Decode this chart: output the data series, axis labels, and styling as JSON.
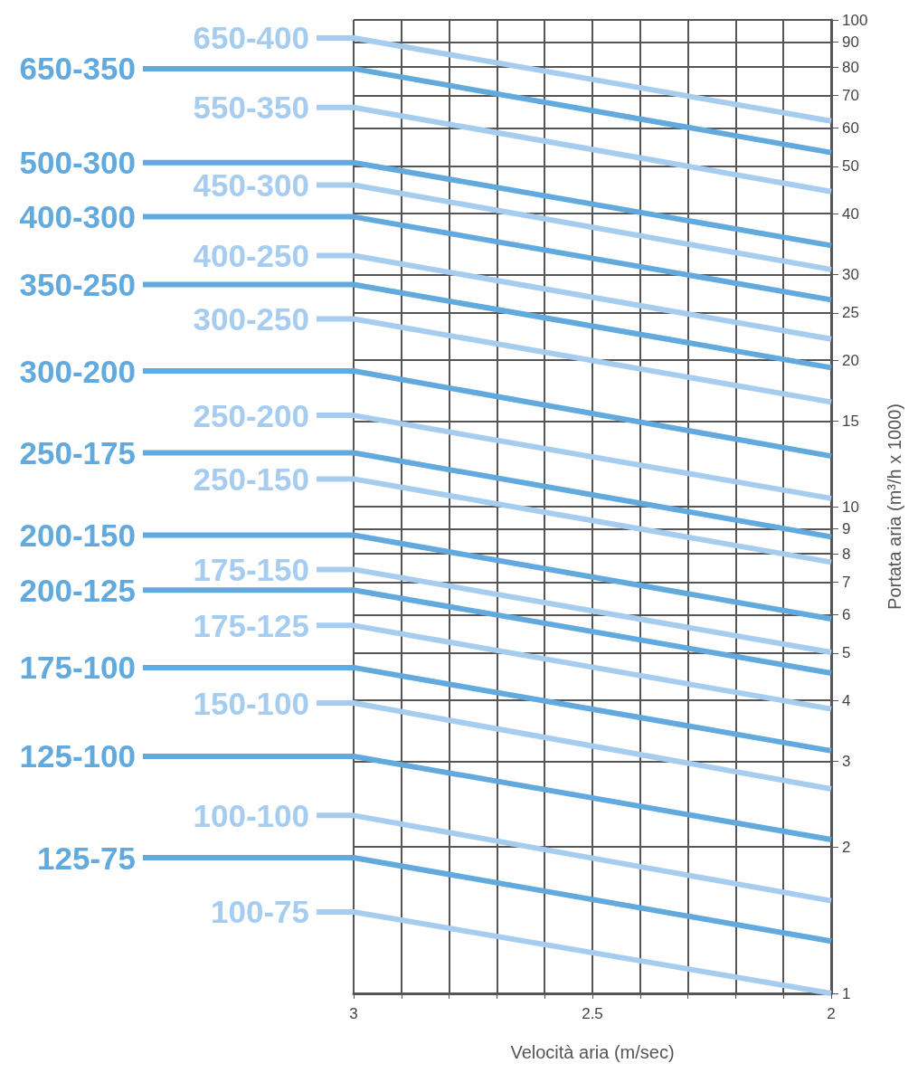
{
  "chart_data": {
    "type": "line",
    "xlabel": "Velocità aria (m/sec)",
    "ylabel": "Portata aria (m³/h x 1000)",
    "log": "y",
    "grid": true,
    "legend": "left",
    "marker": "none",
    "line_style": "solid",
    "x": [
      3,
      2
    ],
    "xlim": [
      3,
      2
    ],
    "xticks": [
      3,
      {
        "value": 2.9,
        "label": null
      },
      {
        "value": 2.8,
        "label": null
      },
      {
        "value": 2.7,
        "label": null
      },
      {
        "value": 2.6,
        "label": null
      },
      2.5,
      {
        "value": 2.4,
        "label": null
      },
      {
        "value": 2.3,
        "label": null
      },
      {
        "value": 2.2,
        "label": null
      },
      {
        "value": 2.1,
        "label": null
      },
      2
    ],
    "ylim": [
      1,
      100
    ],
    "yticks": [
      1,
      2,
      3,
      4,
      5,
      6,
      7,
      8,
      9,
      10,
      15,
      20,
      25,
      30,
      40,
      50,
      60,
      70,
      80,
      90,
      100
    ],
    "series": [
      {
        "name": "650-400",
        "color": "#a6cdef",
        "values": [
          91.8,
          62.0
        ]
      },
      {
        "name": "650-350",
        "color": "#62a9de",
        "values": [
          79.4,
          53.4
        ]
      },
      {
        "name": "550-350",
        "color": "#a6cdef",
        "values": [
          66.1,
          44.4
        ]
      },
      {
        "name": "500-300",
        "color": "#62a9de",
        "values": [
          50.9,
          34.4
        ]
      },
      {
        "name": "450-300",
        "color": "#a6cdef",
        "values": [
          45.8,
          30.7
        ]
      },
      {
        "name": "400-300",
        "color": "#62a9de",
        "values": [
          39.4,
          26.6
        ]
      },
      {
        "name": "400-250",
        "color": "#a6cdef",
        "values": [
          32.8,
          22.1
        ]
      },
      {
        "name": "350-250",
        "color": "#62a9de",
        "values": [
          28.6,
          19.3
        ]
      },
      {
        "name": "300-250",
        "color": "#a6cdef",
        "values": [
          24.3,
          16.4
        ]
      },
      {
        "name": "300-200",
        "color": "#62a9de",
        "values": [
          19.0,
          12.7
        ]
      },
      {
        "name": "250-200",
        "color": "#a6cdef",
        "values": [
          15.4,
          10.4
        ]
      },
      {
        "name": "250-175",
        "color": "#62a9de",
        "values": [
          12.9,
          8.67
        ]
      },
      {
        "name": "250-150",
        "color": "#a6cdef",
        "values": [
          11.4,
          7.69
        ]
      },
      {
        "name": "200-150",
        "color": "#62a9de",
        "values": [
          8.74,
          5.88
        ]
      },
      {
        "name": "175-150",
        "color": "#a6cdef",
        "values": [
          7.43,
          5.02
        ]
      },
      {
        "name": "200-125",
        "color": "#62a9de",
        "values": [
          6.74,
          4.55
        ]
      },
      {
        "name": "175-125",
        "color": "#a6cdef",
        "values": [
          5.7,
          3.84
        ]
      },
      {
        "name": "175-100",
        "color": "#62a9de",
        "values": [
          4.67,
          3.15
        ]
      },
      {
        "name": "150-100",
        "color": "#a6cdef",
        "values": [
          3.95,
          2.63
        ]
      },
      {
        "name": "125-100",
        "color": "#62a9de",
        "values": [
          3.07,
          2.07
        ]
      },
      {
        "name": "100-100",
        "color": "#a6cdef",
        "values": [
          2.32,
          1.55
        ]
      },
      {
        "name": "125-75",
        "color": "#62a9de",
        "values": [
          1.9,
          1.28
        ]
      },
      {
        "name": "100-75",
        "color": "#a6cdef",
        "values": [
          1.47,
          1.0
        ]
      }
    ]
  }
}
